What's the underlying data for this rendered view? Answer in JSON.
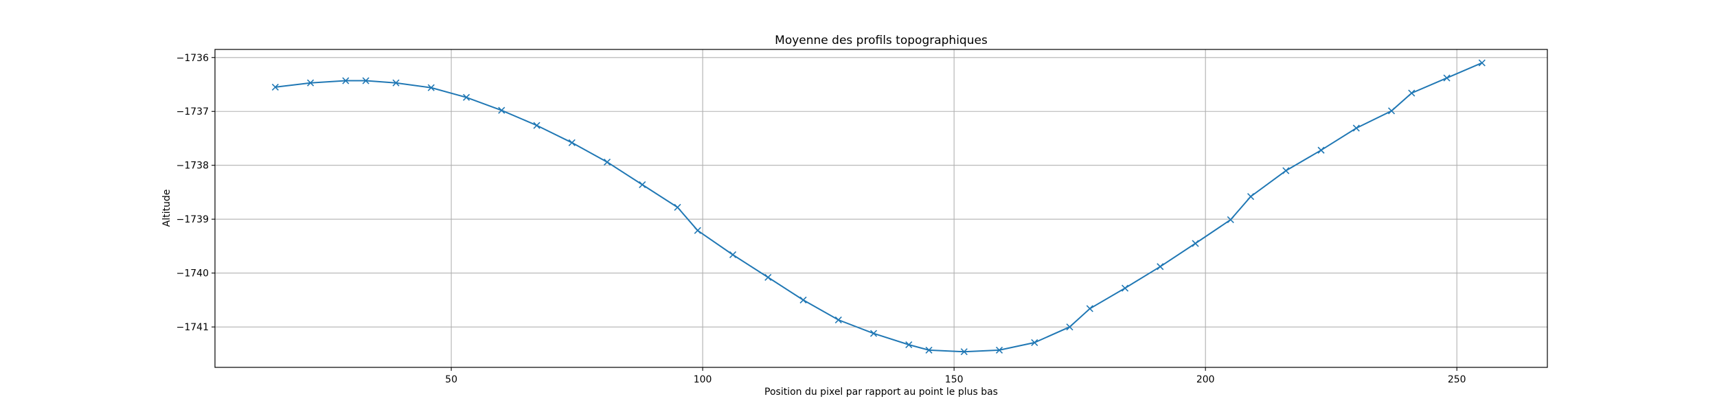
{
  "chart_data": {
    "type": "line",
    "title": "Moyenne des profils topographiques",
    "xlabel": "Position du pixel par rapport au point le plus bas",
    "ylabel": "Altitude",
    "xlim": [
      3,
      268
    ],
    "ylim": [
      -1741.75,
      -1735.85
    ],
    "xticks": [
      50,
      100,
      150,
      200,
      250
    ],
    "yticks": [
      -1741,
      -1740,
      -1739,
      -1738,
      -1737,
      -1736
    ],
    "grid": true,
    "marker": "x",
    "color": "#1f77b4",
    "series": [
      {
        "x": [
          15,
          22,
          29,
          33,
          39,
          46,
          53,
          60,
          67,
          74,
          81,
          88,
          95,
          99,
          106,
          113,
          120,
          127,
          134,
          141,
          145,
          152,
          159,
          166,
          173,
          177,
          184,
          191,
          198,
          205,
          209,
          216,
          223,
          230,
          237,
          241,
          248,
          255
        ],
        "y": [
          -1736.55,
          -1736.47,
          -1736.43,
          -1736.43,
          -1736.47,
          -1736.56,
          -1736.74,
          -1736.98,
          -1737.26,
          -1737.58,
          -1737.94,
          -1738.36,
          -1738.78,
          -1739.21,
          -1739.66,
          -1740.08,
          -1740.5,
          -1740.87,
          -1741.12,
          -1741.33,
          -1741.43,
          -1741.46,
          -1741.43,
          -1741.29,
          -1741.0,
          -1740.66,
          -1740.28,
          -1739.88,
          -1739.45,
          -1739.01,
          -1738.58,
          -1738.1,
          -1737.72,
          -1737.31,
          -1736.99,
          -1736.66,
          -1736.38,
          -1736.1
        ]
      }
    ]
  }
}
